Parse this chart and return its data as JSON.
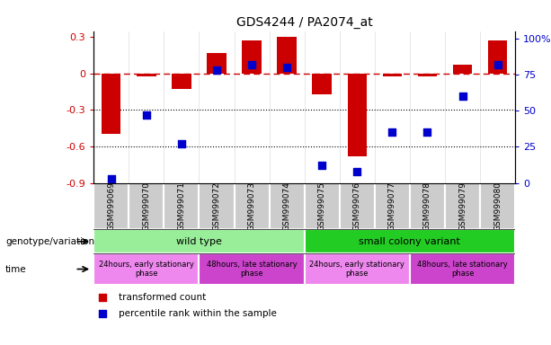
{
  "title": "GDS4244 / PA2074_at",
  "samples": [
    "GSM999069",
    "GSM999070",
    "GSM999071",
    "GSM999072",
    "GSM999073",
    "GSM999074",
    "GSM999075",
    "GSM999076",
    "GSM999077",
    "GSM999078",
    "GSM999079",
    "GSM999080"
  ],
  "bar_values": [
    -0.5,
    -0.02,
    -0.13,
    0.17,
    0.27,
    0.3,
    -0.17,
    -0.68,
    -0.02,
    -0.02,
    0.07,
    0.27
  ],
  "percentile_values": [
    3,
    47,
    27,
    78,
    82,
    80,
    12,
    8,
    35,
    35,
    60,
    82
  ],
  "bar_color": "#cc0000",
  "percentile_color": "#0000cc",
  "ylim_left": [
    -0.9,
    0.35
  ],
  "ylim_right": [
    0,
    105
  ],
  "hline_y": 0.0,
  "dotted_lines": [
    -0.3,
    -0.6
  ],
  "right_ticks": [
    0,
    25,
    50,
    75,
    100
  ],
  "right_tick_labels": [
    "0",
    "25",
    "50",
    "75",
    "100%"
  ],
  "left_ticks": [
    -0.9,
    -0.6,
    -0.3,
    0.0,
    0.3
  ],
  "left_tick_labels": [
    "-0.9",
    "-0.6",
    "-0.3",
    "0",
    "0.3"
  ],
  "genotype_label": "genotype/variation",
  "time_label": "time",
  "genotype_groups": [
    {
      "label": "wild type",
      "start": 0,
      "end": 6,
      "color": "#99ee99"
    },
    {
      "label": "small colony variant",
      "start": 6,
      "end": 12,
      "color": "#22cc22"
    }
  ],
  "time_groups": [
    {
      "label": "24hours, early stationary\nphase",
      "start": 0,
      "end": 3,
      "color": "#ee88ee"
    },
    {
      "label": "48hours, late stationary\nphase",
      "start": 3,
      "end": 6,
      "color": "#cc44cc"
    },
    {
      "label": "24hours, early stationary\nphase",
      "start": 6,
      "end": 9,
      "color": "#ee88ee"
    },
    {
      "label": "48hours, late stationary\nphase",
      "start": 9,
      "end": 12,
      "color": "#cc44cc"
    }
  ],
  "legend_bar_label": "transformed count",
  "legend_pct_label": "percentile rank within the sample",
  "bar_width": 0.55,
  "pct_marker_size": 40,
  "sample_bg_color": "#cccccc",
  "sample_cell_edge_color": "#ffffff",
  "fig_bg_color": "#ffffff"
}
